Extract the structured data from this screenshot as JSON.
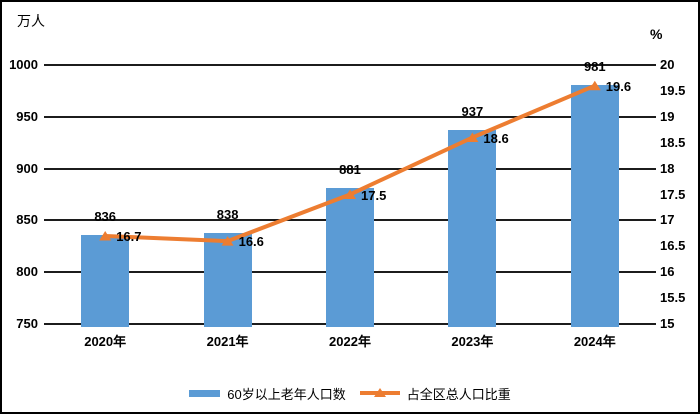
{
  "chart_data": {
    "type": "bar",
    "combo": "bar+line",
    "categories": [
      "2020年",
      "2021年",
      "2022年",
      "2023年",
      "2024年"
    ],
    "series": [
      {
        "name": "60岁以上老年人口数",
        "type": "bar",
        "axis": "left",
        "values": [
          836,
          838,
          881,
          937,
          981
        ],
        "color": "#5B9BD5",
        "data_labels": [
          "836",
          "838",
          "881",
          "937",
          "981"
        ]
      },
      {
        "name": "占全区总人口比重",
        "type": "line",
        "axis": "right",
        "values": [
          16.7,
          16.6,
          17.5,
          18.6,
          19.6
        ],
        "color": "#ED7D31",
        "marker": "triangle-up",
        "data_labels": [
          "16.7",
          "16.6",
          "17.5",
          "18.6",
          "19.6"
        ]
      }
    ],
    "left_axis": {
      "title": "万人",
      "min": 750,
      "max": 1000,
      "step": 50,
      "ticks": [
        1000,
        950,
        900,
        850,
        800,
        750
      ]
    },
    "right_axis": {
      "title": "%",
      "min": 15,
      "max": 20,
      "step": 0.5,
      "ticks": [
        20,
        19.5,
        19,
        18.5,
        18,
        17.5,
        17,
        16.5,
        16,
        15.5,
        15
      ]
    },
    "grid": "horizontal-on",
    "legend_position": "bottom",
    "gridline_color": "#1c1c1c",
    "background_color": "#ffffff",
    "border_color": "#000000"
  }
}
